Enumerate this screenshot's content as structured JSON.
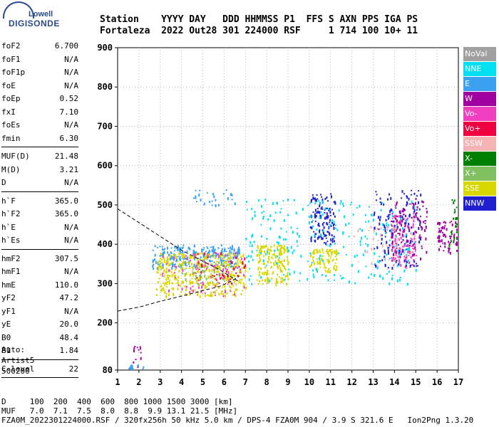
{
  "logo": {
    "brand": "Lowell",
    "product": "DIGISONDE"
  },
  "header": {
    "line1": "Station    YYYY DAY   DDD HHMMSS P1  FFS S AXN PPS IGA PS",
    "line2": "Fortaleza  2022 Out28 301 224000 RSF     1 714 100 10+ 11"
  },
  "params": [
    {
      "group": [
        {
          "name": "foF2",
          "value": "6.700"
        },
        {
          "name": "foF1",
          "value": "N/A"
        },
        {
          "name": "foF1p",
          "value": "N/A"
        },
        {
          "name": "foE",
          "value": "N/A"
        },
        {
          "name": "foEp",
          "value": "0.52"
        },
        {
          "name": "fxI",
          "value": "7.10"
        },
        {
          "name": "foEs",
          "value": "N/A"
        },
        {
          "name": "fmin",
          "value": "6.30"
        }
      ]
    },
    {
      "group": [
        {
          "name": "MUF(D)",
          "value": "21.48"
        },
        {
          "name": "M(D)",
          "value": "3.21"
        },
        {
          "name": "D",
          "value": "N/A"
        }
      ]
    },
    {
      "group": [
        {
          "name": "h`F",
          "value": "365.0"
        },
        {
          "name": "h`F2",
          "value": "365.0"
        },
        {
          "name": "h`E",
          "value": "N/A"
        },
        {
          "name": "h`Es",
          "value": "N/A"
        }
      ]
    },
    {
      "group": [
        {
          "name": "hmF2",
          "value": "307.5"
        },
        {
          "name": "hmF1",
          "value": "N/A"
        },
        {
          "name": "hmE",
          "value": "110.0"
        },
        {
          "name": "yF2",
          "value": "47.2"
        },
        {
          "name": "yF1",
          "value": "N/A"
        },
        {
          "name": "yE",
          "value": "20.0"
        },
        {
          "name": "B0",
          "value": "48.4"
        },
        {
          "name": "B1",
          "value": "1.84"
        }
      ]
    },
    {
      "group": [
        {
          "name": "C-level",
          "value": "22"
        }
      ]
    }
  ],
  "auto": {
    "line1": "Auto:",
    "line2": "Artist5",
    "line3": "500200"
  },
  "legend": [
    {
      "label": "NoVal",
      "color": "#a0a0a0"
    },
    {
      "label": "NNE",
      "color": "#00e0f0"
    },
    {
      "label": "E",
      "color": "#3ca0f0"
    },
    {
      "label": "W",
      "color": "#a000a0"
    },
    {
      "label": "Vo-",
      "color": "#f040c0"
    },
    {
      "label": "Vo+",
      "color": "#f00040"
    },
    {
      "label": "SSW",
      "color": "#f4b4b4"
    },
    {
      "label": "X-",
      "color": "#008000"
    },
    {
      "label": "X+",
      "color": "#80c060"
    },
    {
      "label": "SSE",
      "color": "#d8d800"
    },
    {
      "label": "NNW",
      "color": "#2020d0"
    }
  ],
  "footer": {
    "line1": "D     100  200  400  600  800 1000 1500 3000 [km]",
    "line2": "MUF   7.0  7.1  7.5  8.0  8.8  9.9 13.1 21.5 [MHz]",
    "line3": "FZA0M_2022301224000.RSF / 320fx256h 50 kHz 5.0 km / DPS-4 FZA0M 904 / 3.9 S 321.6 E   Ion2Png 1.3.20"
  },
  "chart_data": {
    "type": "scatter",
    "xlim": [
      1,
      17
    ],
    "ylim": [
      80,
      900
    ],
    "xticks": [
      1,
      2,
      3,
      4,
      5,
      6,
      7,
      8,
      9,
      10,
      11,
      12,
      13,
      14,
      15,
      16,
      17
    ],
    "yticks": [
      80,
      200,
      300,
      400,
      500,
      600,
      700,
      800,
      900
    ],
    "grid": true,
    "grid_style": "dotted",
    "clusters": [
      {
        "name": "E",
        "color": "#3ca0f0",
        "x": [
          2.6,
          6.7
        ],
        "y": [
          340,
          400
        ],
        "n": 260
      },
      {
        "name": "SSE",
        "color": "#d8d800",
        "x": [
          2.8,
          7.0
        ],
        "y": [
          270,
          380
        ],
        "n": 420
      },
      {
        "name": "SSE",
        "color": "#d8d800",
        "x": [
          7.5,
          9.0
        ],
        "y": [
          300,
          400
        ],
        "n": 160
      },
      {
        "name": "SSE",
        "color": "#d8d800",
        "x": [
          10.0,
          11.3
        ],
        "y": [
          330,
          390
        ],
        "n": 90
      },
      {
        "name": "Vo-",
        "color": "#f040c0",
        "x": [
          3.0,
          7.0
        ],
        "y": [
          270,
          380
        ],
        "n": 80
      },
      {
        "name": "Vo-",
        "color": "#f040c0",
        "x": [
          13.8,
          15.0
        ],
        "y": [
          340,
          480
        ],
        "n": 120
      },
      {
        "name": "Vo+",
        "color": "#f00040",
        "x": [
          4.5,
          7.0
        ],
        "y": [
          300,
          380
        ],
        "n": 40
      },
      {
        "name": "NNW",
        "color": "#2020d0",
        "x": [
          10.0,
          11.2
        ],
        "y": [
          400,
          530
        ],
        "n": 120
      },
      {
        "name": "NNW",
        "color": "#2020d0",
        "x": [
          13.0,
          15.2
        ],
        "y": [
          340,
          540
        ],
        "n": 140
      },
      {
        "name": "NNE",
        "color": "#00e0f0",
        "x": [
          7.0,
          15.0
        ],
        "y": [
          300,
          520
        ],
        "n": 260
      },
      {
        "name": "W",
        "color": "#a000a0",
        "x": [
          13.8,
          15.5
        ],
        "y": [
          360,
          520
        ],
        "n": 100
      },
      {
        "name": "W",
        "color": "#a000a0",
        "x": [
          16.0,
          17.0
        ],
        "y": [
          380,
          460
        ],
        "n": 70
      },
      {
        "name": "X-",
        "color": "#008000",
        "x": [
          16.5,
          17.0
        ],
        "y": [
          380,
          520
        ],
        "n": 20
      },
      {
        "name": "X+",
        "color": "#80c060",
        "x": [
          4.0,
          6.0
        ],
        "y": [
          300,
          360
        ],
        "n": 30
      },
      {
        "name": "SSW",
        "color": "#f4b4b4",
        "x": [
          12.0,
          15.0
        ],
        "y": [
          330,
          450
        ],
        "n": 40
      },
      {
        "name": "E",
        "color": "#3ca0f0",
        "x": [
          4.5,
          6.5
        ],
        "y": [
          500,
          540
        ],
        "n": 25
      },
      {
        "name": "W",
        "color": "#a000a0",
        "x": [
          1.7,
          2.1
        ],
        "y": [
          90,
          145
        ],
        "n": 12
      },
      {
        "name": "E",
        "color": "#3ca0f0",
        "x": [
          1.5,
          2.2
        ],
        "y": [
          80,
          95
        ],
        "n": 12
      }
    ],
    "curves": [
      {
        "name": "ionogram-upper",
        "style": "dashed",
        "x": [
          1.0,
          2.0,
          3.0,
          4.0,
          5.0,
          5.8,
          6.3,
          6.7
        ],
        "y": [
          490,
          455,
          420,
          385,
          357,
          335,
          318,
          305
        ]
      },
      {
        "name": "ionogram-lower",
        "style": "dashed",
        "x": [
          1.0,
          2.0,
          3.0,
          4.0,
          5.0,
          5.8,
          6.3,
          6.7
        ],
        "y": [
          230,
          240,
          255,
          268,
          282,
          293,
          305,
          318
        ]
      }
    ]
  }
}
